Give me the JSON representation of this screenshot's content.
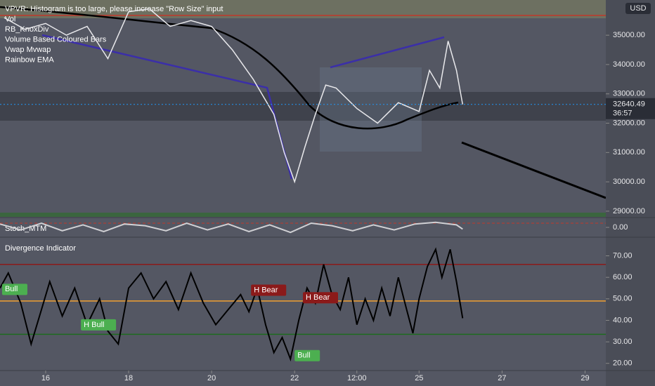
{
  "indicator_labels": [
    "VPVR: Histogram is too large, please increase \"Row Size\" input",
    "Vol",
    "RB_KnoxDiv",
    "Volume Based Coloured Bars",
    "Vwap Mvwap",
    "Rainbow EMA"
  ],
  "currency": "USD",
  "countdown": "36:57",
  "chart_data": [
    {
      "type": "line",
      "color": "#e9e9ec",
      "x": [
        15.0,
        15.5,
        16.0,
        16.5,
        17.0,
        17.5,
        18.0,
        18.5,
        19.0,
        19.5,
        20.0,
        20.5,
        21.0,
        21.5,
        21.75,
        22.0,
        22.25,
        22.5,
        22.75,
        23.0,
        23.5,
        24.0,
        24.5,
        25.0,
        25.25,
        25.5,
        25.7,
        25.9,
        26.05
      ],
      "values": [
        35600,
        35200,
        35400,
        35000,
        35300,
        34200,
        35800,
        35900,
        35300,
        35500,
        35300,
        34500,
        33500,
        32300,
        31000,
        30000,
        31200,
        32300,
        33300,
        33200,
        32500,
        32000,
        32700,
        32400,
        33800,
        33200,
        34800,
        33800,
        32640.49
      ],
      "last_price": 32640.49,
      "xlim": [
        14.9,
        29.5
      ],
      "ylim": [
        28830,
        36200
      ],
      "yticks": [
        {
          "value": 29000,
          "label": "29000.00"
        },
        {
          "value": 30000,
          "label": "30000.00"
        },
        {
          "value": 31000,
          "label": "31000.00"
        },
        {
          "value": 32000,
          "label": "32000.00"
        },
        {
          "value": 33000,
          "label": "33000.00"
        },
        {
          "value": 34000,
          "label": "34000.00"
        },
        {
          "value": 35000,
          "label": "35000.00"
        }
      ]
    },
    {
      "type": "line",
      "title": "Stoch_MTM",
      "color": "#d0d0d4",
      "x": [
        14.9,
        15.4,
        15.9,
        16.4,
        16.9,
        17.4,
        17.9,
        18.4,
        18.9,
        19.4,
        19.9,
        20.4,
        20.9,
        21.4,
        21.9,
        22.4,
        22.9,
        23.4,
        23.9,
        24.4,
        24.9,
        25.4,
        25.9,
        26.05
      ],
      "values": [
        0.4,
        -0.3,
        0.5,
        -0.4,
        0.3,
        -0.5,
        0.4,
        0.2,
        -0.4,
        0.5,
        -0.3,
        0.4,
        -0.5,
        0.3,
        -0.6,
        0.5,
        0.2,
        -0.4,
        0.3,
        -0.3,
        0.4,
        0.6,
        0.3,
        -0.2
      ],
      "xlim": [
        14.9,
        29.5
      ],
      "ylim": [
        -1,
        1
      ],
      "yticks": [
        {
          "value": 0,
          "label": "0.00"
        }
      ]
    },
    {
      "type": "line",
      "title": "Divergence Indicator",
      "color": "#000000",
      "x": [
        14.9,
        15.1,
        15.4,
        15.65,
        15.9,
        16.1,
        16.4,
        16.7,
        17.0,
        17.3,
        17.5,
        17.75,
        18.0,
        18.3,
        18.6,
        18.9,
        19.2,
        19.5,
        19.8,
        20.1,
        20.4,
        20.7,
        20.9,
        21.1,
        21.3,
        21.5,
        21.7,
        21.9,
        22.1,
        22.3,
        22.5,
        22.7,
        22.9,
        23.1,
        23.3,
        23.5,
        23.7,
        23.9,
        24.1,
        24.3,
        24.5,
        24.7,
        24.85,
        25.0,
        25.2,
        25.4,
        25.55,
        25.75,
        25.9,
        26.05
      ],
      "values": [
        55,
        62,
        48,
        29,
        45,
        58,
        42,
        55,
        38,
        50,
        35,
        29,
        55,
        62,
        50,
        58,
        45,
        62,
        48,
        38,
        45,
        52,
        44,
        55,
        38,
        25,
        32,
        22,
        40,
        55,
        48,
        66,
        52,
        45,
        60,
        38,
        50,
        40,
        55,
        42,
        60,
        45,
        34,
        50,
        65,
        73,
        60,
        73,
        58,
        41
      ],
      "levels": [
        {
          "value": 66,
          "color": "#8b1a1a"
        },
        {
          "value": 49,
          "color": "#f0a030"
        },
        {
          "value": 33.5,
          "color": "#1e6b1e"
        }
      ],
      "annotations": [
        {
          "text": "Bull",
          "x": 14.95,
          "y": 54.4,
          "color": "#4caf50"
        },
        {
          "text": "H Bull",
          "x": 16.85,
          "y": 37.9,
          "color": "#4caf50"
        },
        {
          "text": "H Bear",
          "x": 20.95,
          "y": 54,
          "color": "#8b1a1a"
        },
        {
          "text": "H Bear",
          "x": 22.2,
          "y": 50.5,
          "color": "#8b1a1a"
        },
        {
          "text": "Bull",
          "x": 22.0,
          "y": 23.6,
          "color": "#4caf50"
        }
      ],
      "xlim": [
        14.9,
        29.5
      ],
      "ylim": [
        16,
        78
      ],
      "yticks": [
        {
          "value": 20,
          "label": "20.00"
        },
        {
          "value": 30,
          "label": "30.00"
        },
        {
          "value": 40,
          "label": "40.00"
        },
        {
          "value": 50,
          "label": "50.00"
        },
        {
          "value": 60,
          "label": "60.00"
        },
        {
          "value": 70,
          "label": "70.00"
        }
      ],
      "xticks": [
        16,
        18,
        20,
        22,
        {
          "value": 23.5,
          "label": "12:00"
        },
        25,
        27,
        29
      ]
    }
  ]
}
